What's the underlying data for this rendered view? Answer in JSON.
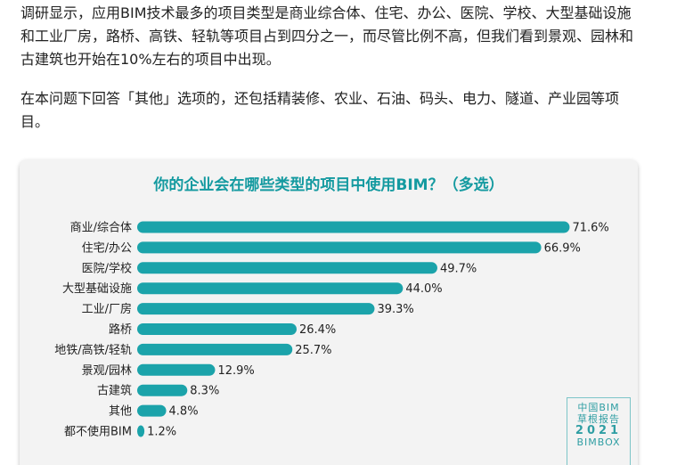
{
  "intro": {
    "paragraph1": "调研显示，应用BIM技术最多的项目类型是商业综合体、住宅、办公、医院、学校、大型基础设施和工业厂房，路桥、高铁、轻轨等项目占到四分之一，而尽管比例不高，但我们看到景观、园林和古建筑也开始在10%左右的项目中出现。",
    "paragraph2": "在本问题下回答「其他」选项的，还包括精装修、农业、石油、码头、电力、隧道、产业园等项目。"
  },
  "colors": {
    "bar": "#1ba3aa",
    "title": "#149aa0",
    "card_bg": "#f3f3f3"
  },
  "stamp": {
    "line1": "中国BIM",
    "line2": "草根报告",
    "line3": "2021",
    "line4": "BIMBOX"
  },
  "chart_data": {
    "type": "bar",
    "orientation": "horizontal",
    "title": "你的企业会在哪些类型的项目中使用BIM？（多选）",
    "categories": [
      "商业/综合体",
      "住宅/办公",
      "医院/学校",
      "大型基础设施",
      "工业/厂房",
      "路桥",
      "地铁/高铁/轻轨",
      "景观/园林",
      "古建筑",
      "其他",
      "都不使用BIM"
    ],
    "values": [
      71.6,
      66.9,
      49.7,
      44.0,
      39.3,
      26.4,
      25.7,
      12.9,
      8.3,
      4.8,
      1.2
    ],
    "value_labels": [
      "71.6%",
      "66.9%",
      "49.7%",
      "44.0%",
      "39.3%",
      "26.4%",
      "25.7%",
      "12.9%",
      "8.3%",
      "4.8%",
      "1.2%"
    ],
    "xlim": [
      0,
      100
    ],
    "unit": "%",
    "grid": false,
    "legend": "none"
  }
}
